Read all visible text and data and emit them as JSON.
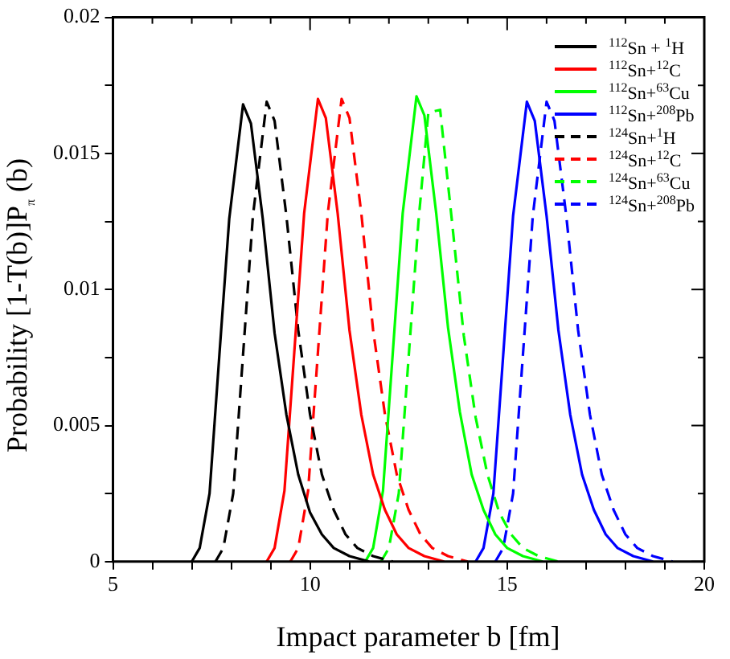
{
  "chart_data": {
    "type": "line",
    "xlabel": "Impact parameter b [fm]",
    "ylabel": "Probability [1-T(b)]P$_{π}$ (b)",
    "xlim": [
      5,
      20
    ],
    "xticks": [
      5,
      {
        "value": 6,
        "label": null
      },
      {
        "value": 7,
        "label": null
      },
      {
        "value": 8,
        "label": null
      },
      {
        "value": 9,
        "label": null
      },
      10,
      {
        "value": 11,
        "label": null
      },
      {
        "value": 12,
        "label": null
      },
      {
        "value": 13,
        "label": null
      },
      {
        "value": 14,
        "label": null
      },
      15,
      {
        "value": 16,
        "label": null
      },
      {
        "value": 17,
        "label": null
      },
      {
        "value": 18,
        "label": null
      },
      {
        "value": 19,
        "label": null
      },
      20
    ],
    "ylim": [
      0,
      0.02
    ],
    "yticks": [
      0,
      {
        "value": 0.0025,
        "label": null
      },
      0.005,
      {
        "value": 0.0075,
        "label": null
      },
      0.01,
      {
        "value": 0.0125,
        "label": null
      },
      0.015,
      {
        "value": 0.0175,
        "label": null
      },
      0.02
    ],
    "grid": false,
    "legend": "top right",
    "marker": "none",
    "series": [
      {
        "name": "$^{112}$Sn + $^{1}$H",
        "color": "#000000",
        "line_style": "solid",
        "x": [
          7.0,
          7.2,
          7.45,
          7.7,
          7.95,
          8.3,
          8.5,
          8.8,
          9.1,
          9.4,
          9.7,
          10.0,
          10.3,
          10.6,
          11.0,
          11.5
        ],
        "values": [
          0,
          0.0005,
          0.0025,
          0.0076,
          0.0126,
          0.0168,
          0.0161,
          0.0126,
          0.0084,
          0.0054,
          0.0032,
          0.0018,
          0.001,
          0.0005,
          0.0002,
          0
        ]
      },
      {
        "name": "$^{112}$Sn+$^{12}$C",
        "color": "#ff0000",
        "line_style": "solid",
        "x": [
          8.9,
          9.1,
          9.35,
          9.6,
          9.85,
          10.2,
          10.4,
          10.7,
          11.0,
          11.3,
          11.6,
          11.9,
          12.2,
          12.5,
          12.9,
          13.4
        ],
        "values": [
          0,
          0.0005,
          0.0026,
          0.0077,
          0.0128,
          0.017,
          0.0163,
          0.0128,
          0.0085,
          0.0054,
          0.0032,
          0.0019,
          0.001,
          0.0005,
          0.0002,
          0
        ]
      },
      {
        "name": "$^{112}$Sn+$^{63}$Cu",
        "color": "#00ff00",
        "line_style": "solid",
        "x": [
          11.4,
          11.6,
          11.85,
          12.1,
          12.35,
          12.7,
          12.9,
          13.2,
          13.5,
          13.8,
          14.1,
          14.4,
          14.7,
          15.0,
          15.4,
          15.9
        ],
        "values": [
          0,
          0.0005,
          0.0026,
          0.0077,
          0.0128,
          0.0171,
          0.0164,
          0.0128,
          0.0086,
          0.0055,
          0.0032,
          0.0019,
          0.001,
          0.0005,
          0.0002,
          0
        ]
      },
      {
        "name": "$^{112}$Sn+$^{208}$Pb",
        "color": "#0000ff",
        "line_style": "solid",
        "x": [
          14.2,
          14.4,
          14.65,
          14.9,
          15.15,
          15.5,
          15.7,
          16.0,
          16.3,
          16.6,
          16.9,
          17.2,
          17.5,
          17.8,
          18.2,
          18.7
        ],
        "values": [
          0,
          0.0005,
          0.0025,
          0.0076,
          0.0127,
          0.0169,
          0.0162,
          0.0127,
          0.0085,
          0.0054,
          0.0032,
          0.0019,
          0.001,
          0.0005,
          0.0002,
          0
        ]
      },
      {
        "name": "$^{124}$Sn+$^{1}$H",
        "color": "#000000",
        "line_style": "dashed",
        "x": [
          7.6,
          7.8,
          8.05,
          8.3,
          8.55,
          8.9,
          9.1,
          9.4,
          9.7,
          10.0,
          10.3,
          10.6,
          10.9,
          11.2,
          11.6,
          12.1
        ],
        "values": [
          0,
          0.0005,
          0.0025,
          0.0076,
          0.0127,
          0.0169,
          0.0162,
          0.0127,
          0.0085,
          0.0054,
          0.0032,
          0.0019,
          0.001,
          0.0005,
          0.0002,
          0
        ]
      },
      {
        "name": "$^{124}$Sn+$^{12}$C",
        "color": "#ff0000",
        "line_style": "dashed",
        "x": [
          9.5,
          9.7,
          9.95,
          10.2,
          10.45,
          10.8,
          11.0,
          11.3,
          11.6,
          11.9,
          12.2,
          12.5,
          12.8,
          13.1,
          13.5,
          14.0
        ],
        "values": [
          0,
          0.0005,
          0.0026,
          0.0077,
          0.0128,
          0.017,
          0.0163,
          0.0128,
          0.0085,
          0.0054,
          0.0032,
          0.0019,
          0.001,
          0.0005,
          0.0002,
          0
        ]
      },
      {
        "name": "$^{124}$Sn+$^{63}$Cu",
        "color": "#00ff00",
        "line_style": "dashed",
        "x": [
          11.8,
          12.0,
          12.25,
          12.5,
          12.75,
          13.0,
          13.3,
          13.6,
          13.9,
          14.2,
          14.5,
          14.8,
          15.1,
          15.4,
          15.8,
          16.3
        ],
        "values": [
          0,
          0.0005,
          0.0025,
          0.0075,
          0.0125,
          0.0165,
          0.0166,
          0.0125,
          0.0083,
          0.0053,
          0.0032,
          0.0018,
          0.001,
          0.0005,
          0.0002,
          0
        ]
      },
      {
        "name": "$^{124}$Sn+$^{208}$Pb",
        "color": "#0000ff",
        "line_style": "dashed",
        "x": [
          14.7,
          14.9,
          15.15,
          15.4,
          15.65,
          16.0,
          16.2,
          16.5,
          16.8,
          17.1,
          17.4,
          17.7,
          18.0,
          18.3,
          18.7,
          19.2
        ],
        "values": [
          0,
          0.0005,
          0.0025,
          0.0076,
          0.0127,
          0.0169,
          0.0162,
          0.0127,
          0.0085,
          0.0054,
          0.0032,
          0.0019,
          0.001,
          0.0005,
          0.0002,
          0
        ]
      }
    ]
  }
}
